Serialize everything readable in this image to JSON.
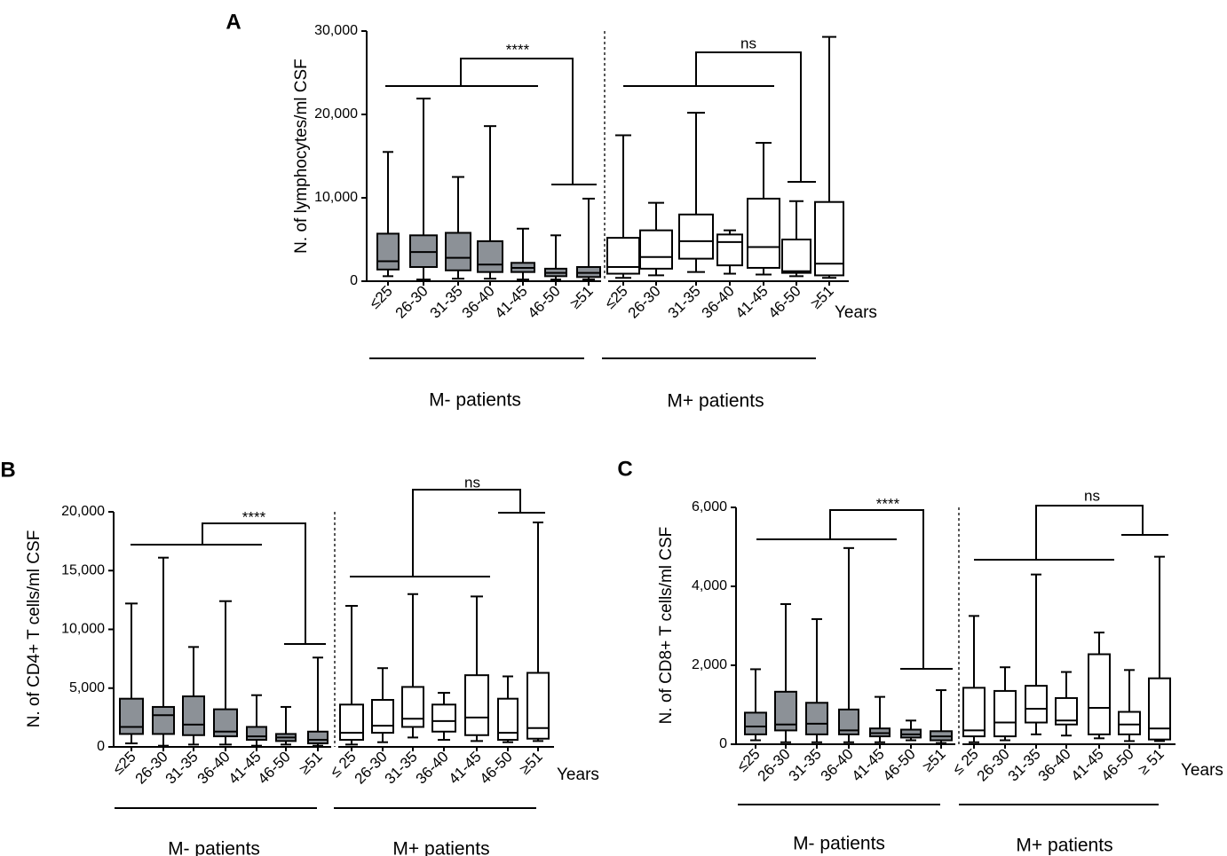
{
  "chart_data": [
    {
      "panel": "A",
      "type": "boxplot",
      "ylabel": "N. of lymphocytes/ml CSF",
      "ylim": [
        0,
        30000
      ],
      "yticks": [
        0,
        10000,
        20000,
        30000
      ],
      "ytick_labels": [
        "0",
        "10,000",
        "20,000",
        "30,000"
      ],
      "years_label": "Years",
      "groups": [
        {
          "name": "M- patients",
          "fill": "#8c9197",
          "categories": [
            "≤25",
            "26-30",
            "31-35",
            "36-40",
            "41-45",
            "46-50",
            "≥51"
          ],
          "boxes": [
            {
              "min": 600,
              "q1": 1400,
              "median": 2400,
              "q3": 5700,
              "max": 15500
            },
            {
              "min": 200,
              "q1": 1700,
              "median": 3500,
              "q3": 5500,
              "max": 21900
            },
            {
              "min": 300,
              "q1": 1300,
              "median": 2800,
              "q3": 5800,
              "max": 12500
            },
            {
              "min": 300,
              "q1": 1100,
              "median": 2000,
              "q3": 4800,
              "max": 18600
            },
            {
              "min": 200,
              "q1": 1100,
              "median": 1600,
              "q3": 2200,
              "max": 6300
            },
            {
              "min": 200,
              "q1": 600,
              "median": 1000,
              "q3": 1500,
              "max": 5500
            },
            {
              "min": 200,
              "q1": 500,
              "median": 1000,
              "q3": 1700,
              "max": 9900
            }
          ]
        },
        {
          "name": "M+ patients",
          "fill": "#ffffff",
          "categories": [
            "≤25",
            "26-30",
            "31-35",
            "36-40",
            "41-45",
            "46-50",
            "≥51"
          ],
          "boxes": [
            {
              "min": 400,
              "q1": 900,
              "median": 1700,
              "q3": 5200,
              "max": 17500
            },
            {
              "min": 700,
              "q1": 1500,
              "median": 2900,
              "q3": 6100,
              "max": 9400
            },
            {
              "min": 1100,
              "q1": 2700,
              "median": 4800,
              "q3": 8000,
              "max": 20200
            },
            {
              "min": 900,
              "q1": 1900,
              "median": 4700,
              "q3": 5600,
              "max": 6100
            },
            {
              "min": 800,
              "q1": 1600,
              "median": 4100,
              "q3": 9900,
              "max": 16600
            },
            {
              "min": 600,
              "q1": 1000,
              "median": 1200,
              "q3": 5000,
              "max": 9600
            },
            {
              "min": 400,
              "q1": 700,
              "median": 2100,
              "q3": 9500,
              "max": 29300
            }
          ]
        }
      ],
      "comparisons": [
        {
          "group": "M- patients",
          "label": "****"
        },
        {
          "group": "M+ patients",
          "label": "ns"
        }
      ]
    },
    {
      "panel": "B",
      "type": "boxplot",
      "ylabel": "N. of CD4+ T cells/ml CSF",
      "ylim": [
        0,
        20000
      ],
      "yticks": [
        0,
        5000,
        10000,
        15000,
        20000
      ],
      "ytick_labels": [
        "0",
        "5,000",
        "10,000",
        "15,000",
        "20,000"
      ],
      "years_label": "Years",
      "groups": [
        {
          "name": "M- patients",
          "fill": "#8c9197",
          "categories": [
            "≤25",
            "26-30",
            "31-35",
            "36-40",
            "41-45",
            "46-50",
            "≥51"
          ],
          "boxes": [
            {
              "min": 300,
              "q1": 1100,
              "median": 1700,
              "q3": 4100,
              "max": 12200
            },
            {
              "min": 100,
              "q1": 1100,
              "median": 2700,
              "q3": 3400,
              "max": 16100
            },
            {
              "min": 200,
              "q1": 1000,
              "median": 1900,
              "q3": 4300,
              "max": 8500
            },
            {
              "min": 200,
              "q1": 900,
              "median": 1300,
              "q3": 3200,
              "max": 12400
            },
            {
              "min": 100,
              "q1": 600,
              "median": 900,
              "q3": 1700,
              "max": 4400
            },
            {
              "min": 200,
              "q1": 500,
              "median": 800,
              "q3": 1100,
              "max": 3400
            },
            {
              "min": 100,
              "q1": 300,
              "median": 600,
              "q3": 1300,
              "max": 7600
            }
          ]
        },
        {
          "name": "M+ patients",
          "fill": "#ffffff",
          "categories": [
            "≤ 25",
            "26-30",
            "31-35",
            "36-40",
            "41-45",
            "46-50",
            "≥51"
          ],
          "boxes": [
            {
              "min": 200,
              "q1": 600,
              "median": 1200,
              "q3": 3600,
              "max": 12000
            },
            {
              "min": 400,
              "q1": 1200,
              "median": 1800,
              "q3": 4000,
              "max": 6700
            },
            {
              "min": 800,
              "q1": 1700,
              "median": 2400,
              "q3": 5100,
              "max": 13000
            },
            {
              "min": 600,
              "q1": 1300,
              "median": 2200,
              "q3": 3600,
              "max": 4600
            },
            {
              "min": 500,
              "q1": 1000,
              "median": 2500,
              "q3": 6100,
              "max": 12800
            },
            {
              "min": 400,
              "q1": 600,
              "median": 1200,
              "q3": 4100,
              "max": 6000
            },
            {
              "min": 500,
              "q1": 700,
              "median": 1600,
              "q3": 6300,
              "max": 19100
            }
          ]
        }
      ],
      "comparisons": [
        {
          "group": "M- patients",
          "label": "****"
        },
        {
          "group": "M+ patients",
          "label": "ns"
        }
      ]
    },
    {
      "panel": "C",
      "type": "boxplot",
      "ylabel": "N. of CD8+ T cells/ml CSF",
      "ylim": [
        0,
        6000
      ],
      "yticks": [
        0,
        2000,
        4000,
        6000
      ],
      "ytick_labels": [
        "0",
        "2,000",
        "4,000",
        "6,000"
      ],
      "years_label": "Years",
      "groups": [
        {
          "name": "M- patients",
          "fill": "#8c9197",
          "categories": [
            "≤25",
            "26-30",
            "31-35",
            "36-40",
            "41-45",
            "46-50",
            "≥51"
          ],
          "boxes": [
            {
              "min": 100,
              "q1": 250,
              "median": 450,
              "q3": 800,
              "max": 1900
            },
            {
              "min": 50,
              "q1": 350,
              "median": 500,
              "q3": 1330,
              "max": 3550
            },
            {
              "min": 50,
              "q1": 250,
              "median": 520,
              "q3": 1050,
              "max": 3170
            },
            {
              "min": 50,
              "q1": 250,
              "median": 350,
              "q3": 880,
              "max": 4970
            },
            {
              "min": 50,
              "q1": 200,
              "median": 280,
              "q3": 400,
              "max": 1200
            },
            {
              "min": 100,
              "q1": 170,
              "median": 250,
              "q3": 370,
              "max": 600
            },
            {
              "min": 30,
              "q1": 100,
              "median": 200,
              "q3": 330,
              "max": 1370
            }
          ]
        },
        {
          "name": "M+ patients",
          "fill": "#ffffff",
          "categories": [
            "≤ 25",
            "26-30",
            "31-35",
            "36-40",
            "41-45",
            "46-50",
            "≥ 51"
          ],
          "boxes": [
            {
              "min": 50,
              "q1": 200,
              "median": 350,
              "q3": 1430,
              "max": 3250
            },
            {
              "min": 100,
              "q1": 200,
              "median": 550,
              "q3": 1350,
              "max": 1950
            },
            {
              "min": 250,
              "q1": 550,
              "median": 900,
              "q3": 1480,
              "max": 4300
            },
            {
              "min": 220,
              "q1": 500,
              "median": 600,
              "q3": 1170,
              "max": 1830
            },
            {
              "min": 150,
              "q1": 250,
              "median": 920,
              "q3": 2280,
              "max": 2830
            },
            {
              "min": 80,
              "q1": 250,
              "median": 500,
              "q3": 820,
              "max": 1880
            },
            {
              "min": 80,
              "q1": 120,
              "median": 400,
              "q3": 1670,
              "max": 4750
            }
          ]
        }
      ],
      "comparisons": [
        {
          "group": "M- patients",
          "label": "****"
        },
        {
          "group": "M+ patients",
          "label": "ns"
        }
      ]
    }
  ]
}
